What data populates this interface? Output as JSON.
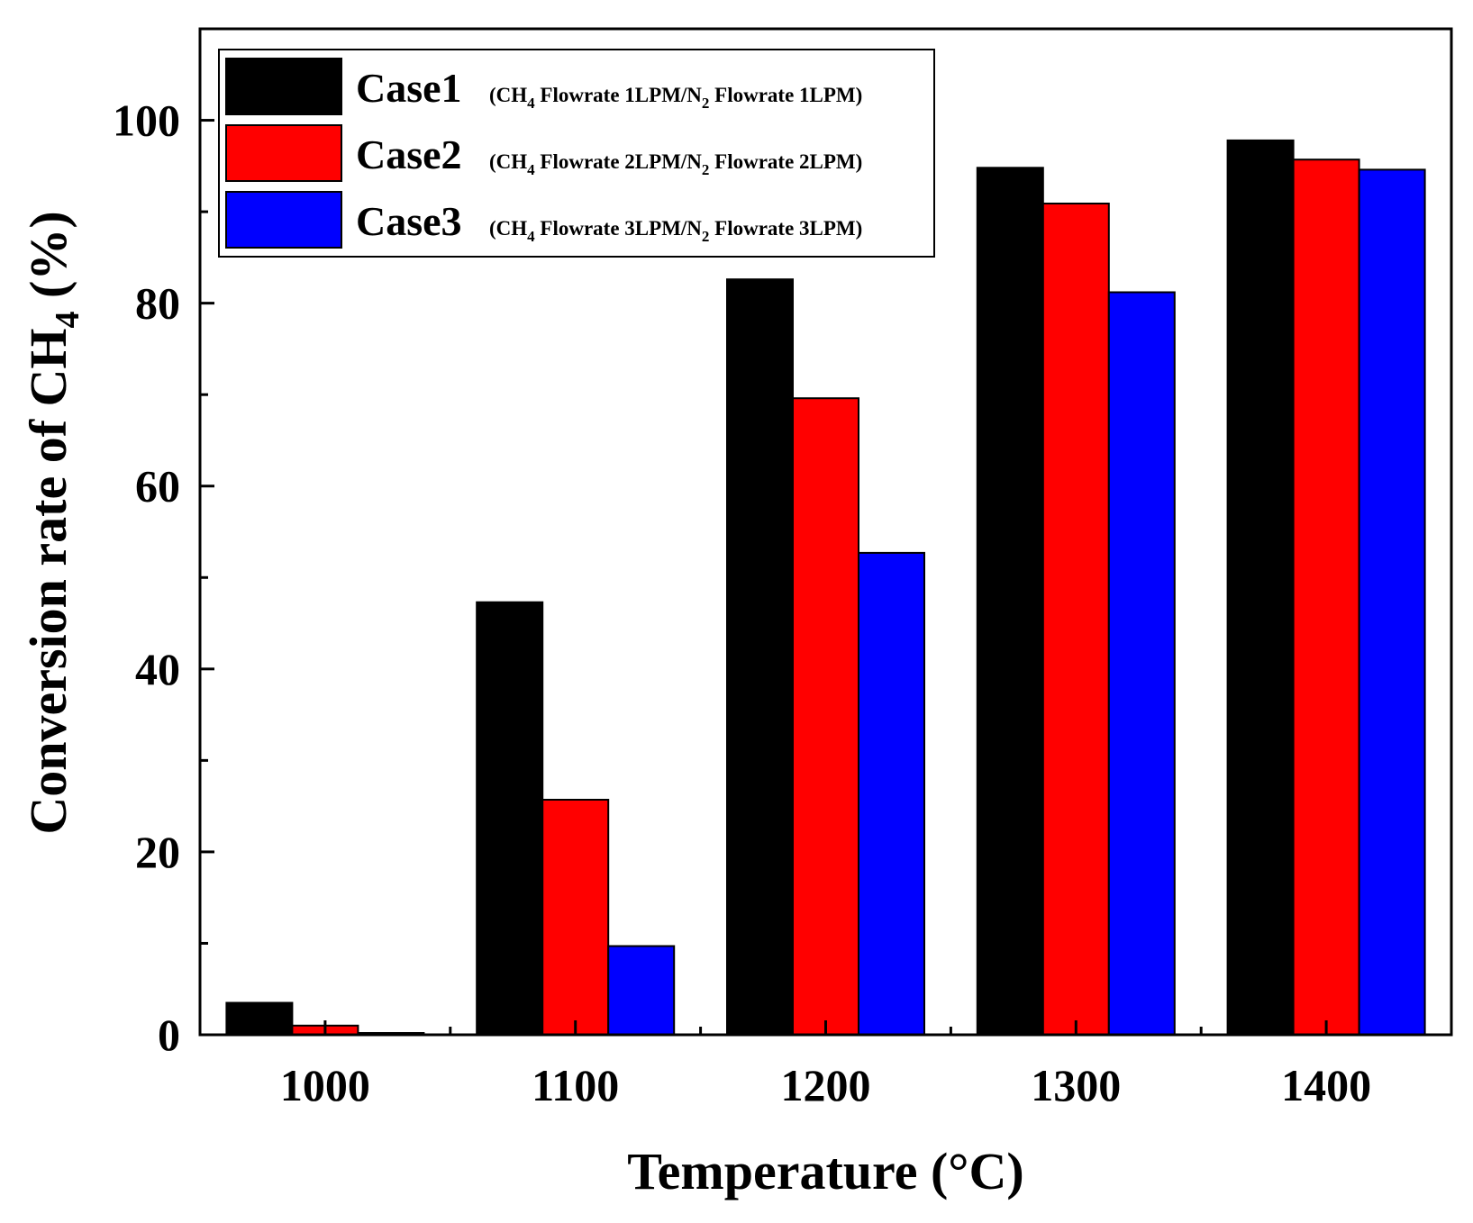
{
  "chart_data": {
    "type": "bar",
    "title": "",
    "xlabel": "Temperature (°C)",
    "ylabel": {
      "prefix": "Conversion rate of CH",
      "subscript": "4",
      "suffix": " (%)"
    },
    "categories": [
      "1000",
      "1100",
      "1200",
      "1300",
      "1400"
    ],
    "ylim": [
      0,
      110
    ],
    "yticks": [
      0,
      20,
      40,
      60,
      80,
      100
    ],
    "grid": false,
    "legend_position": "top-left",
    "series": [
      {
        "name": "Case1",
        "description": {
          "a": "(CH",
          "a_sub": "4",
          "b": " Flowrate 1LPM/N",
          "b_sub": "2",
          "c": " Flowrate 1LPM)"
        },
        "color": "#000000",
        "values": [
          3.5,
          47.3,
          82.6,
          94.8,
          97.8
        ]
      },
      {
        "name": "Case2",
        "description": {
          "a": "(CH",
          "a_sub": "4",
          "b": " Flowrate 2LPM/N",
          "b_sub": "2",
          "c": " Flowrate 2LPM)"
        },
        "color": "#ff0000",
        "values": [
          1.0,
          25.7,
          69.6,
          90.9,
          95.7
        ]
      },
      {
        "name": "Case3",
        "description": {
          "a": "(CH",
          "a_sub": "4",
          "b": " Flowrate 3LPM/N",
          "b_sub": "2",
          "c": " Flowrate 3LPM)"
        },
        "color": "#0000ff",
        "values": [
          0.2,
          9.7,
          52.7,
          81.2,
          94.6
        ]
      }
    ]
  }
}
